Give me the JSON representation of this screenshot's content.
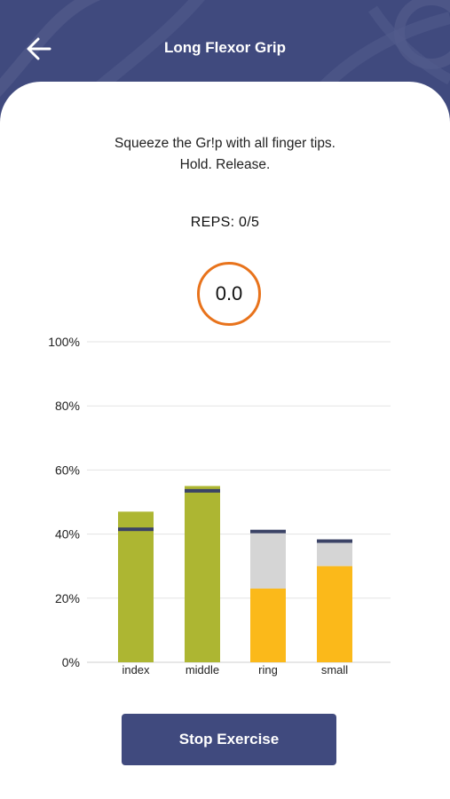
{
  "header": {
    "title": "Long Flexor Grip",
    "back_icon": "arrow-left-icon"
  },
  "instruction": {
    "line1": "Squeeze the Gr!p with all finger tips.",
    "line2": "Hold. Release."
  },
  "reps": "REPS: 0/5",
  "timer": "0.0",
  "colors": {
    "brand": "#404a7e",
    "timer_ring": "#e8731c",
    "on_target": "#adb632",
    "below_target": "#fbb91a",
    "target_range": "#d5d5d5",
    "target_marker": "#3b4366"
  },
  "chart_data": {
    "type": "bar",
    "categories": [
      "index",
      "middle",
      "ring",
      "small"
    ],
    "ylim": [
      0,
      100
    ],
    "yticks": [
      "0%",
      "20%",
      "40%",
      "60%",
      "80%",
      "100%"
    ],
    "grid": true,
    "bars": [
      {
        "category": "index",
        "value": 47,
        "target": 41.5,
        "range_top": null,
        "status": "on_target"
      },
      {
        "category": "middle",
        "value": 55,
        "target": 53.5,
        "range_top": null,
        "status": "on_target"
      },
      {
        "category": "ring",
        "value": 23,
        "target": 40.8,
        "range_top": 40.2,
        "status": "below_target"
      },
      {
        "category": "small",
        "value": 30,
        "target": 37.8,
        "range_top": 37.2,
        "status": "below_target"
      }
    ]
  },
  "actions": {
    "stop_label": "Stop Exercise"
  }
}
